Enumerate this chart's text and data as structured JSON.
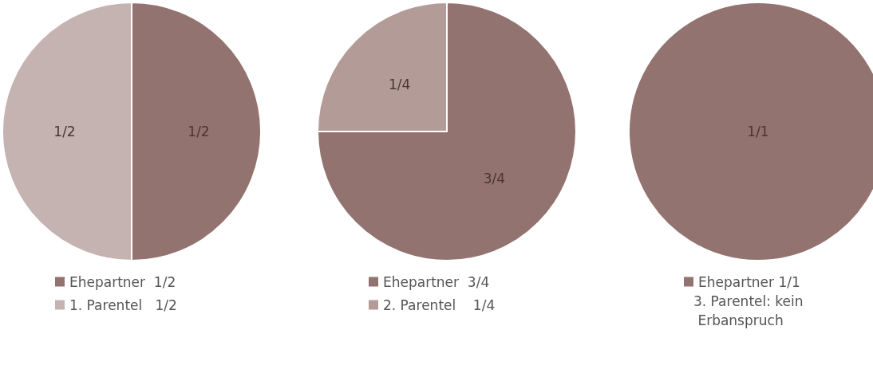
{
  "chart_data": [
    {
      "type": "pie",
      "categories": [
        "Ehepartner  1/2",
        "1. Parentel   1/2"
      ],
      "values": [
        0.5,
        0.5
      ],
      "colors": [
        "#93736f",
        "#c4b3b0"
      ],
      "value_labels": [
        "1/2",
        "1/2"
      ],
      "legend": "bottom left"
    },
    {
      "type": "pie",
      "categories": [
        "Ehepartner  3/4",
        "2. Parentel    1/4"
      ],
      "values": [
        0.75,
        0.25
      ],
      "colors": [
        "#93736f",
        "#b39c98"
      ],
      "value_labels": [
        "3/4",
        "1/4"
      ],
      "legend": "bottom left"
    },
    {
      "type": "pie",
      "categories": [
        "Ehepartner 1/1"
      ],
      "values": [
        1
      ],
      "colors": [
        "#93736f"
      ],
      "value_labels": [
        "1/1"
      ],
      "legend": "bottom left",
      "annotations": [
        "3. Parentel: kein Erbanspruch"
      ]
    }
  ]
}
